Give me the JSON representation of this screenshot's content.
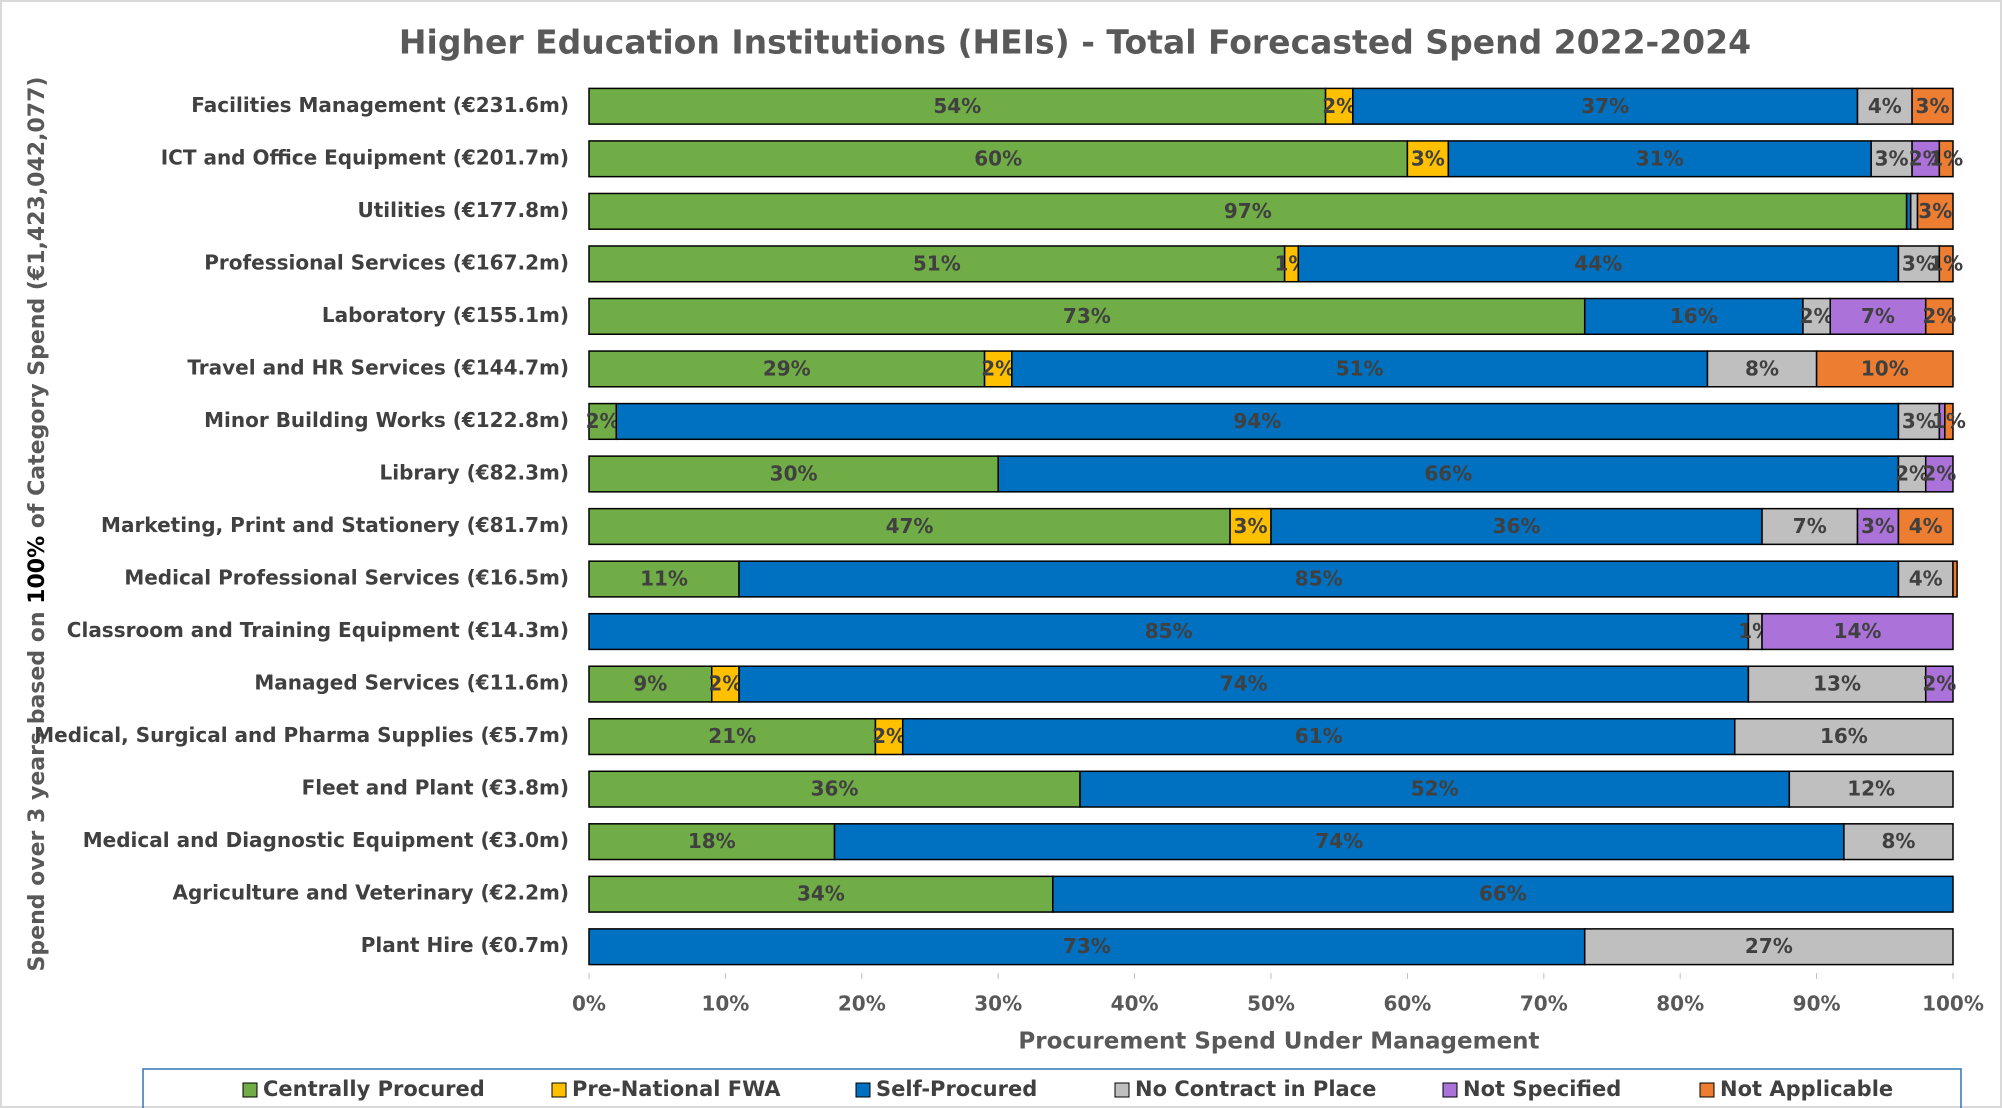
{
  "chart_data": {
    "type": "stacked_barh",
    "title": "Higher Education Institutions (HEIs) - Total Forecasted Spend 2022-2024",
    "x_label": "Procurement Spend Under Management",
    "y_label": [
      "Spend over 3 years based on ",
      "100%",
      " of Category Spend (€1,423,042,077)"
    ],
    "categories": [
      "Facilities Management (€231.6m)",
      "ICT and Office Equipment (€201.7m)",
      "Utilities (€177.8m)",
      "Professional Services (€167.2m)",
      "Laboratory (€155.1m)",
      "Travel and HR Services (€144.7m)",
      "Minor Building Works (€122.8m)",
      "Library (€82.3m)",
      "Marketing, Print and Stationery (€81.7m)",
      "Medical Professional Services (€16.5m)",
      "Classroom and Training Equipment (€14.3m)",
      "Managed Services (€11.6m)",
      "Medical, Surgical and Pharma Supplies (€5.7m)",
      "Fleet and Plant (€3.8m)",
      "Medical and Diagnostic Equipment (€3.0m)",
      "Agriculture and Veterinary (€2.2m)",
      "Plant Hire (€0.7m)"
    ],
    "series": [
      {
        "name": "Centrally Procured",
        "color": "#70ad47",
        "values": [
          54,
          60,
          96.6,
          51,
          73,
          29,
          2,
          30,
          47,
          11,
          0,
          9,
          21,
          36,
          18,
          34,
          0
        ],
        "value_labels": [
          "54%",
          "60%",
          "97%",
          "51%",
          "73%",
          "29%",
          "2%",
          "30%",
          "47%",
          "11%",
          null,
          "9%",
          "21%",
          "36%",
          "18%",
          "34%",
          null
        ]
      },
      {
        "name": "Pre-National FWA",
        "color": "#ffc000",
        "values": [
          2,
          3,
          0,
          1,
          0,
          2,
          0,
          0,
          3,
          0,
          0,
          2,
          2,
          0,
          0,
          0,
          0
        ],
        "value_labels": [
          "2%",
          "3%",
          null,
          "1%",
          null,
          "2%",
          null,
          null,
          "3%",
          null,
          null,
          "2%",
          "2%",
          null,
          null,
          null,
          null
        ]
      },
      {
        "name": "Self-Procured",
        "color": "#0070c0",
        "values": [
          37,
          31,
          0.3,
          44,
          16,
          51,
          94,
          66,
          36,
          85,
          85,
          74,
          61,
          52,
          74,
          66,
          73
        ],
        "value_labels": [
          "37%",
          "31%",
          null,
          "44%",
          "16%",
          "51%",
          "94%",
          "66%",
          "36%",
          "85%",
          "85%",
          "74%",
          "61%",
          "52%",
          "74%",
          "66%",
          "73%"
        ]
      },
      {
        "name": "No Contract in Place",
        "color": "#bfbfbf",
        "values": [
          4,
          3,
          0.5,
          3,
          2,
          8,
          3,
          2,
          7,
          4,
          1,
          13,
          16,
          12,
          8,
          0,
          27
        ],
        "value_labels": [
          "4%",
          "3%",
          null,
          "3%",
          "2%",
          "8%",
          "3%",
          "2%",
          "7%",
          "4%",
          "1%",
          "13%",
          "16%",
          "12%",
          "8%",
          null,
          "27%"
        ]
      },
      {
        "name": "Not Specified",
        "color": "#ab73d9",
        "values": [
          0,
          2,
          0,
          0,
          7,
          0,
          0.4,
          2,
          3,
          0,
          14,
          2,
          0,
          0,
          0,
          0,
          0
        ],
        "value_labels": [
          null,
          "2%",
          null,
          null,
          "7%",
          null,
          null,
          "2%",
          "3%",
          null,
          "14%",
          "2%",
          null,
          null,
          null,
          null,
          null
        ]
      },
      {
        "name": "Not Applicable",
        "color": "#ed7d31",
        "values": [
          3,
          1,
          2.6,
          1,
          2,
          10,
          0.6,
          0,
          4,
          0.3,
          0,
          0,
          0,
          0,
          0,
          0,
          0
        ],
        "value_labels": [
          "3%",
          "1%",
          "3%",
          "1%",
          "2%",
          "10%",
          "1%",
          null,
          "4%",
          null,
          null,
          null,
          null,
          null,
          null,
          null,
          null
        ]
      }
    ],
    "xlim": [
      0,
      100
    ],
    "xticks": [
      {
        "value": 0,
        "label": "0%"
      },
      {
        "value": 10,
        "label": "10%"
      },
      {
        "value": 20,
        "label": "20%"
      },
      {
        "value": 30,
        "label": "30%"
      },
      {
        "value": 40,
        "label": "40%"
      },
      {
        "value": 50,
        "label": "50%"
      },
      {
        "value": 60,
        "label": "60%"
      },
      {
        "value": 70,
        "label": "70%"
      },
      {
        "value": 80,
        "label": "80%"
      },
      {
        "value": 90,
        "label": "90%"
      },
      {
        "value": 100,
        "label": "100%"
      }
    ],
    "legend": "bottom"
  }
}
